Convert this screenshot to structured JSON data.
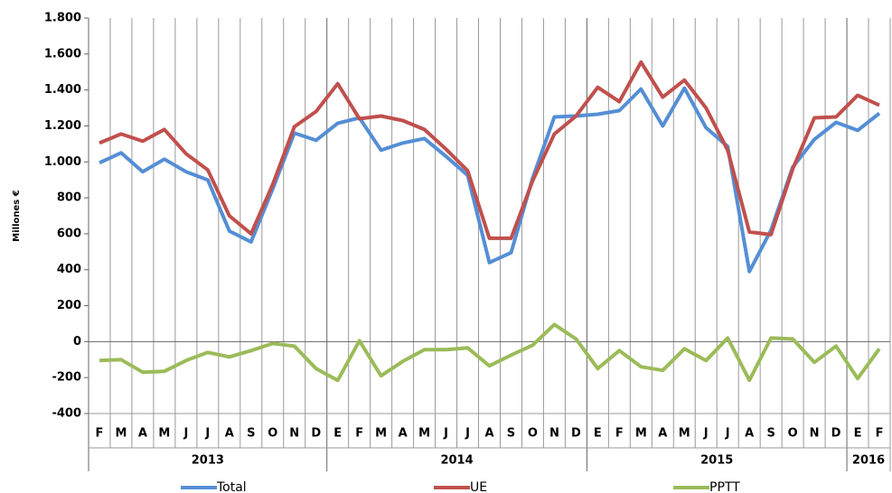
{
  "chart_data": {
    "type": "line",
    "y_label": "Millones €",
    "categories": [
      "F",
      "M",
      "A",
      "M",
      "J",
      "J",
      "A",
      "S",
      "O",
      "N",
      "D",
      "E",
      "F",
      "M",
      "A",
      "M",
      "J",
      "J",
      "A",
      "S",
      "O",
      "N",
      "D",
      "E",
      "F",
      "M",
      "A",
      "M",
      "J",
      "J",
      "A",
      "S",
      "O",
      "N",
      "D",
      "E",
      "F"
    ],
    "years": [
      "2013",
      null,
      null,
      null,
      null,
      null,
      null,
      null,
      null,
      null,
      null,
      "2014",
      null,
      null,
      null,
      null,
      null,
      null,
      null,
      null,
      null,
      null,
      null,
      "2015",
      null,
      null,
      null,
      null,
      null,
      null,
      null,
      null,
      null,
      null,
      null,
      "2016",
      null
    ],
    "series": [
      {
        "name": "Total",
        "color": "#558ed5",
        "values": [
          995,
          1050,
          945,
          1015,
          945,
          900,
          615,
          555,
          850,
          1160,
          1120,
          1215,
          1245,
          1065,
          1105,
          1130,
          1030,
          925,
          440,
          495,
          910,
          1250,
          1255,
          1265,
          1285,
          1405,
          1200,
          1410,
          1190,
          1085,
          390,
          620,
          970,
          1125,
          1220,
          1175,
          1270
        ]
      },
      {
        "name": "UE",
        "color": "#c0504d",
        "values": [
          1105,
          1155,
          1115,
          1180,
          1045,
          955,
          700,
          600,
          875,
          1195,
          1280,
          1435,
          1240,
          1255,
          1230,
          1180,
          1070,
          950,
          575,
          575,
          895,
          1155,
          1255,
          1415,
          1335,
          1555,
          1360,
          1455,
          1300,
          1065,
          610,
          595,
          960,
          1245,
          1250,
          1370,
          1315
        ]
      },
      {
        "name": "PPTT",
        "color": "#9bbb59",
        "values": [
          -105,
          -100,
          -170,
          -165,
          -105,
          -60,
          -85,
          -50,
          -10,
          -25,
          -150,
          -215,
          5,
          -190,
          -110,
          -45,
          -45,
          -35,
          -135,
          -75,
          -20,
          95,
          15,
          -150,
          -50,
          -140,
          -160,
          -40,
          -105,
          20,
          -215,
          20,
          15,
          -115,
          -25,
          -205,
          -40
        ]
      }
    ],
    "ylim": [
      -400,
      1800
    ],
    "yticks": [
      -400,
      -200,
      0,
      200,
      400,
      600,
      800,
      {
        "value": 1000,
        "label": "1.000"
      },
      {
        "value": 1200,
        "label": "1.200"
      },
      {
        "value": 1400,
        "label": "1.400"
      },
      {
        "value": 1600,
        "label": "1.600"
      },
      {
        "value": 1800,
        "label": "1.800"
      }
    ],
    "legend": "bottom"
  }
}
